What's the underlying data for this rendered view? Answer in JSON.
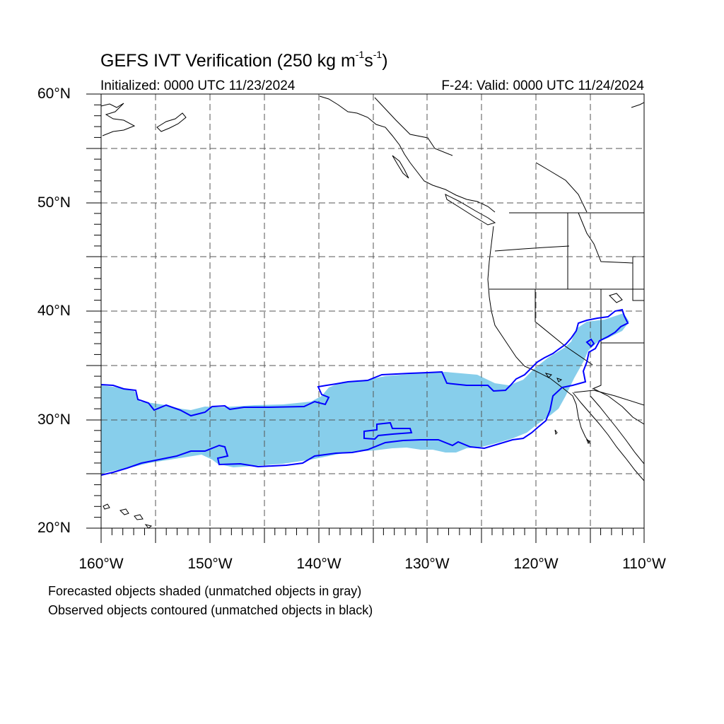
{
  "title": {
    "prefix": "GEFS IVT Verification (250 kg m",
    "exp1": "-1",
    "middle": "s",
    "exp2": "-1",
    "suffix": ")"
  },
  "initialized": "Initialized: 0000 UTC 11/23/2024",
  "valid": "F-24: Valid: 0000 UTC 11/24/2024",
  "axes": {
    "lat_labels": [
      "60°N",
      "50°N",
      "40°N",
      "30°N",
      "20°N"
    ],
    "lon_labels": [
      "160°W",
      "150°W",
      "140°W",
      "130°W",
      "120°W",
      "110°W"
    ],
    "lon_range": [
      -160,
      -110
    ],
    "lat_range": [
      20,
      60
    ],
    "grid": "dashed every 5°"
  },
  "captions": [
    "Forecasted objects shaded (unmatched objects in gray)",
    "Observed objects contoured (unmatched objects in black)"
  ],
  "colors": {
    "forecast_fill": "#87ceeb",
    "observed_contour": "#0000ff",
    "coastline": "#000000",
    "grid": "#555555"
  }
}
